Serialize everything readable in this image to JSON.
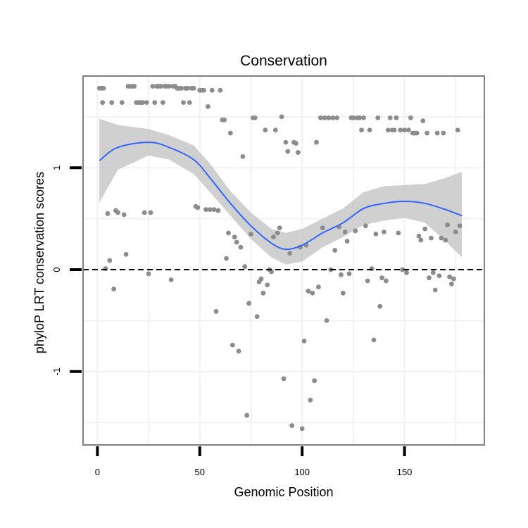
{
  "chart_data": {
    "type": "scatter",
    "title": "Conservation",
    "xlabel": "Genomic Position",
    "ylabel": "phyloP LRT conservation scores",
    "xlim": [
      -7,
      189
    ],
    "ylim": [
      -1.72,
      1.9
    ],
    "x_ticks": [
      0,
      50,
      100,
      150
    ],
    "y_ticks": [
      -1,
      0,
      1
    ],
    "x_minor_grid": [
      25,
      75,
      125,
      175
    ],
    "y_minor_grid": [
      -1.5,
      -0.5,
      0.5,
      1.5
    ],
    "reference_line": {
      "y": 0,
      "style": "dashed"
    },
    "points": [
      [
        1,
        1.78
      ],
      [
        2,
        1.78
      ],
      [
        2.5,
        1.64
      ],
      [
        3,
        1.78
      ],
      [
        4,
        0.01
      ],
      [
        5,
        0.55
      ],
      [
        6,
        0.09
      ],
      [
        7,
        1.64
      ],
      [
        8,
        -0.19
      ],
      [
        9,
        0.58
      ],
      [
        10,
        0.56
      ],
      [
        12,
        1.64
      ],
      [
        13,
        0.54
      ],
      [
        14,
        0.15
      ],
      [
        15,
        1.8
      ],
      [
        16,
        1.8
      ],
      [
        17,
        1.8
      ],
      [
        18,
        1.8
      ],
      [
        19,
        1.64
      ],
      [
        20,
        1.64
      ],
      [
        21,
        1.64
      ],
      [
        22,
        1.64
      ],
      [
        23,
        0.56
      ],
      [
        24,
        1.64
      ],
      [
        25,
        -0.04
      ],
      [
        26,
        0.56
      ],
      [
        27,
        1.8
      ],
      [
        28,
        1.64
      ],
      [
        29,
        1.8
      ],
      [
        30,
        1.8
      ],
      [
        31,
        1.8
      ],
      [
        32,
        1.64
      ],
      [
        33,
        1.8
      ],
      [
        34,
        1.8
      ],
      [
        35,
        1.8
      ],
      [
        36,
        -0.1
      ],
      [
        37,
        1.8
      ],
      [
        38,
        1.8
      ],
      [
        39,
        1.78
      ],
      [
        40,
        1.78
      ],
      [
        41,
        1.78
      ],
      [
        42,
        1.64
      ],
      [
        43,
        1.78
      ],
      [
        44,
        1.78
      ],
      [
        45,
        1.64
      ],
      [
        46,
        1.78
      ],
      [
        47,
        1.78
      ],
      [
        48,
        0.62
      ],
      [
        49,
        0.61
      ],
      [
        50,
        1.76
      ],
      [
        51,
        1.76
      ],
      [
        52,
        1.76
      ],
      [
        53,
        0.59
      ],
      [
        54,
        1.6
      ],
      [
        55,
        0.59
      ],
      [
        56,
        1.76
      ],
      [
        57,
        0.59
      ],
      [
        58,
        -0.41
      ],
      [
        59,
        0.58
      ],
      [
        60,
        1.76
      ],
      [
        61,
        1.47
      ],
      [
        62,
        1.47
      ],
      [
        63,
        0.11
      ],
      [
        64,
        0.36
      ],
      [
        65,
        1.34
      ],
      [
        66,
        -0.74
      ],
      [
        67,
        0.32
      ],
      [
        68,
        0.27
      ],
      [
        69,
        -0.8
      ],
      [
        70,
        0.22
      ],
      [
        71,
        1.11
      ],
      [
        72,
        0.03
      ],
      [
        73,
        -1.43
      ],
      [
        74,
        -0.33
      ],
      [
        75,
        0.35
      ],
      [
        76,
        1.49
      ],
      [
        77,
        1.49
      ],
      [
        78,
        -0.46
      ],
      [
        79,
        -0.12
      ],
      [
        80,
        -0.09
      ],
      [
        81,
        -0.23
      ],
      [
        82,
        1.37
      ],
      [
        83,
        -0.15
      ],
      [
        84,
        0.0
      ],
      [
        85,
        -0.02
      ],
      [
        86,
        0.32
      ],
      [
        87,
        1.37
      ],
      [
        88,
        0.36
      ],
      [
        89,
        0.41
      ],
      [
        90,
        1.5
      ],
      [
        91,
        -1.07
      ],
      [
        92,
        1.25
      ],
      [
        93,
        1.16
      ],
      [
        94,
        0.16
      ],
      [
        95,
        -1.53
      ],
      [
        96,
        1.25
      ],
      [
        97,
        1.24
      ],
      [
        98,
        1.15
      ],
      [
        99,
        0.22
      ],
      [
        100,
        -1.56
      ],
      [
        101,
        -0.7
      ],
      [
        102,
        0.24
      ],
      [
        103,
        -0.21
      ],
      [
        104,
        -1.28
      ],
      [
        105,
        -0.23
      ],
      [
        106,
        -1.09
      ],
      [
        107,
        1.25
      ],
      [
        108,
        -0.17
      ],
      [
        109,
        1.49
      ],
      [
        110,
        0.41
      ],
      [
        111,
        1.49
      ],
      [
        112,
        -0.5
      ],
      [
        113,
        1.49
      ],
      [
        114,
        0.0
      ],
      [
        115,
        1.49
      ],
      [
        116,
        0.19
      ],
      [
        117,
        1.49
      ],
      [
        118,
        0.42
      ],
      [
        119,
        -0.05
      ],
      [
        120,
        -0.23
      ],
      [
        121,
        0.37
      ],
      [
        122,
        0.28
      ],
      [
        123,
        -0.04
      ],
      [
        124,
        1.49
      ],
      [
        125,
        1.49
      ],
      [
        126,
        0.38
      ],
      [
        127,
        1.49
      ],
      [
        128,
        1.49
      ],
      [
        129,
        1.37
      ],
      [
        130,
        1.49
      ],
      [
        131,
        0.43
      ],
      [
        132,
        -0.11
      ],
      [
        133,
        1.37
      ],
      [
        134,
        0.01
      ],
      [
        135,
        -0.69
      ],
      [
        136,
        0.35
      ],
      [
        137,
        1.49
      ],
      [
        138,
        -0.36
      ],
      [
        139,
        -0.08
      ],
      [
        140,
        0.37
      ],
      [
        141,
        -0.11
      ],
      [
        142,
        1.37
      ],
      [
        143,
        1.49
      ],
      [
        144,
        1.37
      ],
      [
        145,
        1.37
      ],
      [
        146,
        1.49
      ],
      [
        147,
        0.36
      ],
      [
        148,
        1.37
      ],
      [
        149,
        0.0
      ],
      [
        150,
        1.37
      ],
      [
        151,
        -0.03
      ],
      [
        152,
        1.37
      ],
      [
        153,
        1.49
      ],
      [
        154,
        1.34
      ],
      [
        155,
        1.34
      ],
      [
        156,
        1.34
      ],
      [
        157,
        0.33
      ],
      [
        158,
        0.29
      ],
      [
        159,
        1.46
      ],
      [
        160,
        0.4
      ],
      [
        161,
        1.34
      ],
      [
        162,
        -0.08
      ],
      [
        163,
        0.31
      ],
      [
        164,
        -0.03
      ],
      [
        165,
        -0.2
      ],
      [
        166,
        1.34
      ],
      [
        167,
        -0.06
      ],
      [
        168,
        0.31
      ],
      [
        169,
        1.34
      ],
      [
        170,
        0.29
      ],
      [
        171,
        0.44
      ],
      [
        172,
        -0.07
      ],
      [
        173,
        -0.14
      ],
      [
        174,
        -0.09
      ],
      [
        175,
        0.37
      ],
      [
        176,
        1.37
      ],
      [
        177,
        0.43
      ]
    ],
    "smooth_line": {
      "method": "loess",
      "color": "#3366ff",
      "x": [
        1,
        10,
        25,
        35,
        47,
        55,
        65,
        75,
        85,
        92,
        100,
        110,
        120,
        130,
        140,
        150,
        160,
        170,
        178
      ],
      "y": [
        1.07,
        1.2,
        1.25,
        1.2,
        1.08,
        0.9,
        0.65,
        0.43,
        0.26,
        0.2,
        0.24,
        0.36,
        0.46,
        0.6,
        0.65,
        0.67,
        0.65,
        0.59,
        0.53
      ],
      "upper": [
        1.48,
        1.42,
        1.38,
        1.32,
        1.22,
        1.04,
        0.77,
        0.56,
        0.4,
        0.36,
        0.4,
        0.5,
        0.6,
        0.76,
        0.82,
        0.83,
        0.84,
        0.9,
        0.96
      ],
      "lower": [
        0.66,
        0.98,
        1.12,
        1.08,
        0.94,
        0.76,
        0.53,
        0.3,
        0.12,
        0.05,
        0.08,
        0.22,
        0.32,
        0.44,
        0.48,
        0.51,
        0.46,
        0.28,
        0.12
      ]
    },
    "colors": {
      "points": "#8c8c8c",
      "smooth": "#3366ff",
      "ribbon": "#c8c8c8",
      "panel_border": "#7f7f7f",
      "grid": "#f2f2f2"
    }
  }
}
